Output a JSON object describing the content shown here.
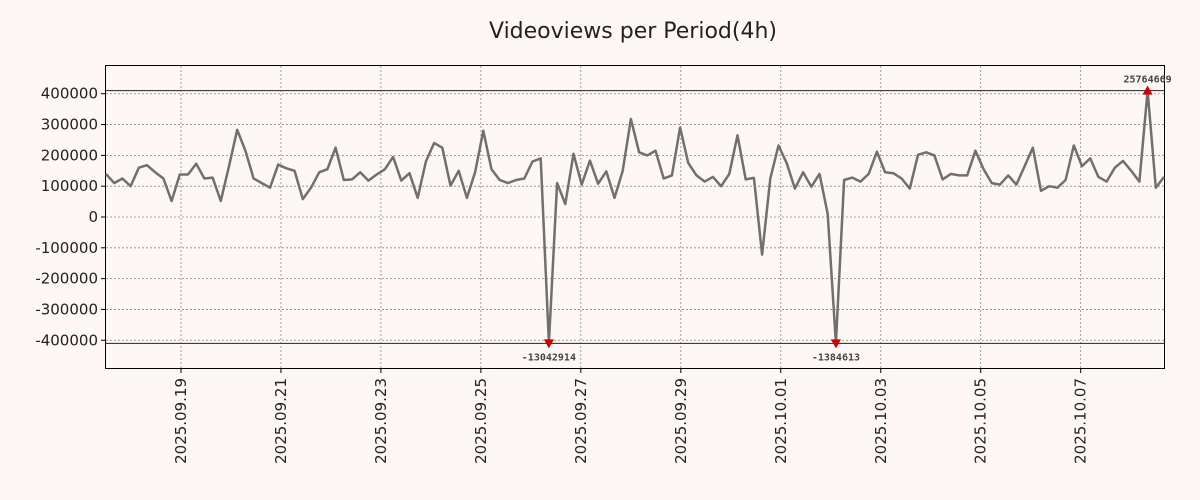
{
  "chart_data": {
    "type": "line",
    "title": "Videoviews per Period(4h)",
    "xlabel": "",
    "ylabel": "",
    "grid": true,
    "x_range": [
      "2025-09-17 12:00",
      "2025-10-08 16:00"
    ],
    "x_ticks": [
      "2025.09.19",
      "2025.09.21",
      "2025.09.23",
      "2025.09.25",
      "2025.09.27",
      "2025.09.29",
      "2025.10.01",
      "2025.10.03",
      "2025.10.05",
      "2025.10.07"
    ],
    "y_ticks": [
      400000,
      300000,
      200000,
      100000,
      0,
      -100000,
      -200000,
      -300000,
      -400000
    ],
    "y_tick_labels": [
      "400000",
      "300000",
      "200000",
      "100000",
      "0",
      "-100000",
      "-200000",
      "-300000",
      "-400000"
    ],
    "ylim": [
      -490000,
      490000
    ],
    "clip_lines": [
      410000,
      -410000
    ],
    "series": [
      {
        "name": "Videoviews",
        "color": "#707070",
        "values": [
          140000,
          110000,
          125000,
          100000,
          160000,
          168000,
          145000,
          125000,
          52000,
          138000,
          138000,
          173000,
          125000,
          128000,
          52000,
          165000,
          283000,
          215000,
          125000,
          110000,
          95000,
          170000,
          158000,
          150000,
          58000,
          95000,
          145000,
          155000,
          225000,
          120000,
          122000,
          145000,
          118000,
          138000,
          155000,
          195000,
          118000,
          142000,
          62000,
          180000,
          240000,
          225000,
          102000,
          150000,
          62000,
          145000,
          280000,
          155000,
          120000,
          110000,
          120000,
          125000,
          180000,
          190000,
          -410000,
          110000,
          42000,
          205000,
          105000,
          183000,
          108000,
          148000,
          62000,
          150000,
          318000,
          210000,
          200000,
          215000,
          125000,
          135000,
          290000,
          175000,
          135000,
          115000,
          130000,
          100000,
          140000,
          265000,
          122000,
          127000,
          -122000,
          125000,
          232000,
          175000,
          92000,
          145000,
          98000,
          140000,
          10000,
          -410000,
          120000,
          128000,
          115000,
          140000,
          212000,
          145000,
          142000,
          125000,
          92000,
          202000,
          210000,
          200000,
          122000,
          140000,
          135000,
          135000,
          215000,
          155000,
          110000,
          105000,
          135000,
          105000,
          165000,
          225000,
          85000,
          100000,
          95000,
          120000,
          232000,
          165000,
          190000,
          130000,
          115000,
          160000,
          182000,
          150000,
          115000,
          410000,
          95000,
          130000
        ]
      }
    ],
    "annotations": [
      {
        "label": "-13042914",
        "index": 54,
        "value": -410000,
        "position": "below"
      },
      {
        "label": "-1384613",
        "index": 89,
        "value": -410000,
        "position": "below"
      },
      {
        "label": "25764669",
        "index": 127,
        "value": 410000,
        "position": "above"
      }
    ],
    "marker_color": "#cc0000"
  }
}
